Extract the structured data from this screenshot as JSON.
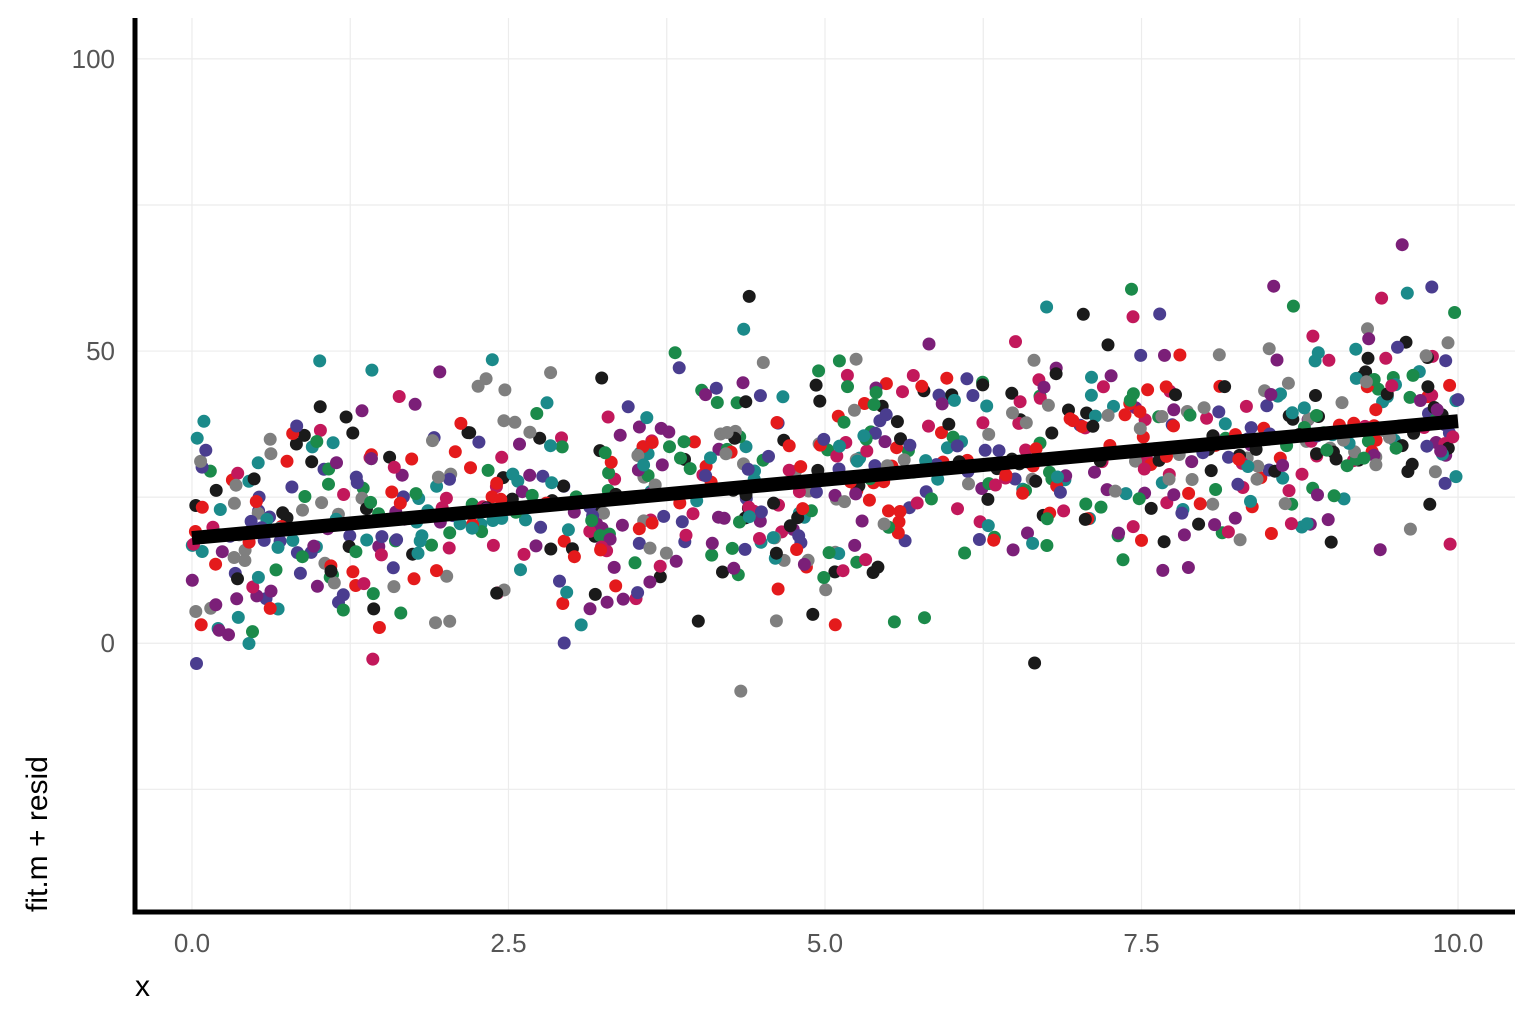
{
  "chart_data": {
    "type": "scatter",
    "title": "",
    "xlabel": "x",
    "ylabel": "fit.m + resid",
    "xlim": [
      -0.45,
      10.45
    ],
    "ylim": [
      -46,
      107
    ],
    "x_ticks": [
      0.0,
      2.5,
      5.0,
      7.5,
      10.0
    ],
    "x_tick_labels": [
      "0.0",
      "2.5",
      "5.0",
      "7.5",
      "10.0"
    ],
    "y_ticks": [
      0,
      50,
      100
    ],
    "y_tick_labels": [
      "0",
      "50",
      "100"
    ],
    "grid": true,
    "legend": "none",
    "palette": [
      "#e41a1c",
      "#c2185b",
      "#7b1f78",
      "#4a3d8f",
      "#1b8a8a",
      "#1b8a4a",
      "#1a1a1a",
      "#7f7f7f"
    ],
    "fit_line": {
      "x": [
        0.0,
        10.0
      ],
      "y": [
        18,
        38
      ],
      "color": "#000000"
    },
    "points": {
      "n": 900,
      "seed": 1337,
      "x_range": [
        0.0,
        10.0
      ],
      "intercept": 18,
      "slope": 2.0,
      "residual_sd": 10
    }
  }
}
